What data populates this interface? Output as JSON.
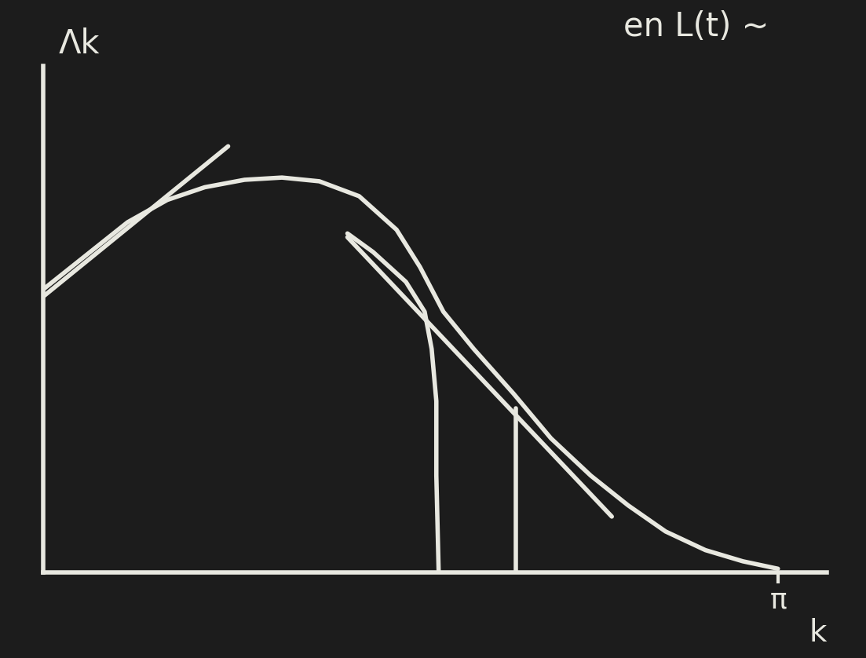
{
  "chart_data": {
    "type": "line",
    "annotations": [
      "en L(t) ~"
    ],
    "x_label": "k",
    "y_label": "Λk",
    "xlim": [
      0,
      3.35
    ],
    "ylim": [
      0,
      6.8
    ],
    "xticks": [
      {
        "value": 3.1416,
        "label": "π"
      }
    ],
    "yticks": [],
    "tick_labels": "x",
    "grid": false,
    "color": "#e8e8e0",
    "series": [
      {
        "x": [
          0,
          0.2,
          0.36,
          0.53,
          0.69,
          0.86,
          1.02,
          1.18,
          1.35,
          1.51,
          1.61,
          1.71,
          1.84,
          2.01,
          2.17,
          2.34,
          2.5,
          2.66,
          2.83,
          2.99,
          3.14
        ],
        "values": [
          3.8,
          4.3,
          4.7,
          5.0,
          5.17,
          5.27,
          5.3,
          5.25,
          5.05,
          4.6,
          4.1,
          3.5,
          3.0,
          2.4,
          1.8,
          1.3,
          0.9,
          0.55,
          0.3,
          0.15,
          0.05
        ],
        "color": "#e8e8e0",
        "line_style": "solid"
      },
      {
        "x": [
          -0.08,
          0.79
        ],
        "values": [
          3.5,
          5.72
        ],
        "color": "#e8e8e0",
        "line_style": "solid"
      },
      {
        "x": [
          1.3,
          2.43
        ],
        "values": [
          4.5,
          0.75
        ],
        "color": "#e8e8e0",
        "line_style": "solid"
      },
      {
        "x": [
          1.3,
          1.41,
          1.55,
          1.63,
          1.66,
          1.68,
          1.68,
          1.69
        ],
        "values": [
          4.55,
          4.3,
          3.9,
          3.5,
          3.0,
          2.3,
          1.3,
          0
        ],
        "color": "#e8e8e0",
        "line_style": "solid"
      },
      {
        "x": [
          2.02,
          2.02
        ],
        "values": [
          0,
          2.2
        ],
        "color": "#e8e8e0",
        "line_style": "solid"
      }
    ]
  }
}
